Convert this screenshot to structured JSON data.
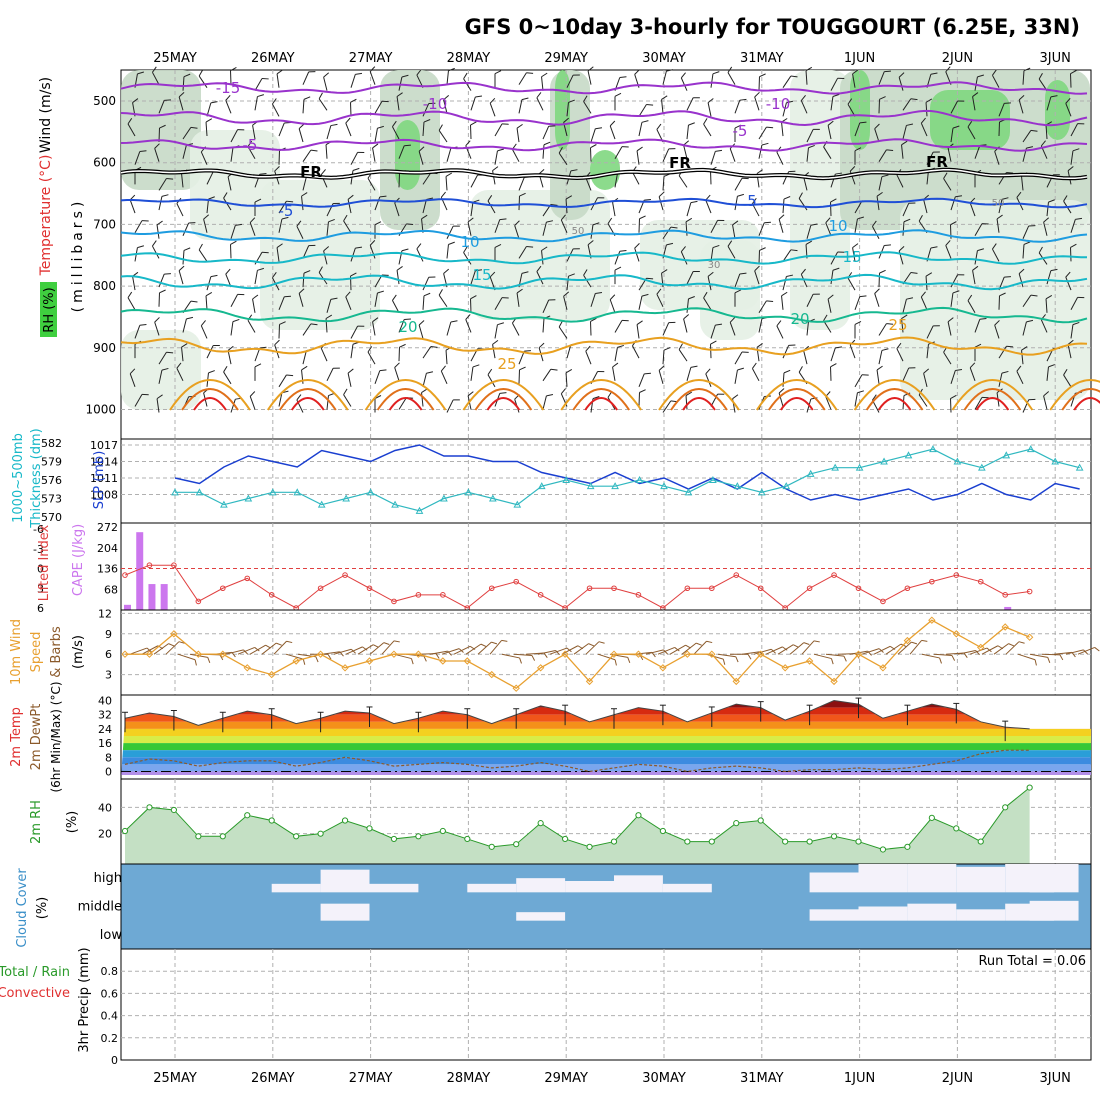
{
  "title": "GFS 0~10day 3-hourly for TOUGGOURT (6.25E, 33N)",
  "dates": [
    "25MAY",
    "26MAY",
    "27MAY",
    "28MAY",
    "29MAY",
    "30MAY",
    "31MAY",
    "1JUN",
    "2JUN",
    "3JUN"
  ],
  "colors": {
    "purple": "#9933cc",
    "black": "#000000",
    "blue": "#1f4fd6",
    "lightblue": "#1e9ce0",
    "cyan": "#17b8c8",
    "teal": "#16b890",
    "orange": "#e8a020",
    "darkorange": "#e0701a",
    "red": "#e02020",
    "green_light": "#e4efe4",
    "green_mid": "#c6d9c6",
    "green_dark": "#7fd77f",
    "slp": "#1a3fd0",
    "thickness": "#30b8c0",
    "cape": "#cc77ee",
    "li": "#e04040",
    "wind": "#e8a030",
    "barb": "#8b5a2b",
    "rh": "#2a9a2a",
    "cloud": "#6ea9d4",
    "cloud_clear": "#f4f2fa"
  },
  "panels": {
    "upper": {
      "ylabel_wind": "Wind (m/s)",
      "ylabel_temp": "Temperature (°C)",
      "ylabel_rh": "RH (%)",
      "ylabel_units": "(millibars)",
      "yticks": [
        "500",
        "600",
        "700",
        "800",
        "900",
        "1000"
      ],
      "contour_labels": [
        "-15",
        "-10",
        "-5",
        "-10",
        "-5",
        "FR",
        "FR",
        "FR",
        "-5",
        "5",
        "10",
        "10",
        "15",
        "15",
        "20",
        "20",
        "25",
        "25",
        "50",
        "30",
        "50"
      ]
    },
    "slp": {
      "ylabel_left": "1000~500mb",
      "ylabel_left2": "Thickness (dm)",
      "ylabel_right": "SLP (mb)",
      "yticks_left": [
        "582",
        "579",
        "576",
        "573",
        "570"
      ],
      "yticks_right": [
        "1017",
        "1014",
        "1011",
        "1008"
      ]
    },
    "cape": {
      "ylabel_left": "Lifted Index",
      "ylabel_right": "CAPE (J/kg)",
      "yticks_left": [
        "-6",
        "-3",
        "0",
        "3",
        "6"
      ],
      "yticks_right": [
        "272",
        "204",
        "136",
        "68"
      ]
    },
    "wind": {
      "ylabel1": "10m Wind",
      "ylabel2": "Speed",
      "ylabel3": "& Barbs",
      "ylabel_units": "(m/s)",
      "yticks": [
        "12",
        "9",
        "6",
        "3"
      ]
    },
    "temp": {
      "ylabel1": "2m Temp",
      "ylabel2": "2m DewPt",
      "ylabel3": "(6hr Min/Max) (°C)",
      "yticks": [
        "40",
        "32",
        "24",
        "16",
        "8",
        "0"
      ]
    },
    "rh": {
      "ylabel1": "2m RH",
      "ylabel_units": "(%)",
      "yticks": [
        "40",
        "20"
      ]
    },
    "cloud": {
      "ylabel1": "Cloud Cover",
      "ylabel_units": "(%)",
      "levels": [
        "high",
        "middle",
        "low"
      ]
    },
    "precip": {
      "ylabel_total": "Total / Rain",
      "ylabel_conv": "Convective",
      "ylabel_units": "3hr Precip (mm)",
      "yticks": [
        "0.8",
        "0.6",
        "0.4",
        "0.2",
        "0"
      ],
      "run_total": "Run Total = 0.06"
    }
  },
  "chart_data": [
    {
      "type": "line",
      "title": "Sea-level pressure and 1000-500mb thickness",
      "x_unit": "days from 25MAY 00Z",
      "series": [
        {
          "name": "SLP (mb)",
          "axis": "right",
          "ylim": [
            1005,
            1017
          ],
          "x": [
            0,
            0.25,
            0.5,
            0.75,
            1,
            1.25,
            1.5,
            1.75,
            2,
            2.25,
            2.5,
            2.75,
            3,
            3.25,
            3.5,
            3.75,
            4,
            4.25,
            4.5,
            4.75,
            5,
            5.25,
            5.5,
            5.75,
            6,
            6.25,
            6.5,
            6.75,
            7,
            7.25,
            7.5,
            7.75,
            8,
            8.25,
            8.5,
            8.75,
            9,
            9.25
          ],
          "values": [
            1011,
            1010,
            1013,
            1015,
            1014,
            1013,
            1016,
            1015,
            1014,
            1016,
            1017,
            1015,
            1015,
            1014,
            1014,
            1012,
            1011,
            1010,
            1012,
            1010,
            1011,
            1009,
            1011,
            1009,
            1012,
            1009,
            1007,
            1008,
            1007,
            1008,
            1009,
            1007,
            1008,
            1010,
            1008,
            1007,
            1010,
            1009
          ]
        },
        {
          "name": "Thickness (dm)",
          "axis": "left",
          "ylim": [
            570,
            582
          ],
          "x": [
            0,
            0.25,
            0.5,
            0.75,
            1,
            1.25,
            1.5,
            1.75,
            2,
            2.25,
            2.5,
            2.75,
            3,
            3.25,
            3.5,
            3.75,
            4,
            4.25,
            4.5,
            4.75,
            5,
            5.25,
            5.5,
            5.75,
            6,
            6.25,
            6.5,
            6.75,
            7,
            7.25,
            7.5,
            7.75,
            8,
            8.25,
            8.5,
            8.75,
            9,
            9.25
          ],
          "values": [
            574,
            574,
            572,
            573,
            574,
            574,
            572,
            573,
            574,
            572,
            571,
            573,
            574,
            573,
            572,
            575,
            576,
            575,
            575,
            576,
            575,
            574,
            576,
            575,
            574,
            575,
            577,
            578,
            578,
            579,
            580,
            581,
            579,
            578,
            580,
            581,
            579,
            578
          ]
        }
      ]
    },
    {
      "type": "bar",
      "title": "CAPE (J/kg)",
      "ylim": [
        0,
        272
      ],
      "x": [
        0,
        0.125,
        0.25,
        0.375,
        9.0
      ],
      "values": [
        17,
        255,
        85,
        85,
        10
      ]
    },
    {
      "type": "line",
      "title": "Lifted Index",
      "ylim": [
        6,
        -6
      ],
      "x": [
        0,
        0.25,
        0.5,
        0.75,
        1,
        1.25,
        1.5,
        1.75,
        2,
        2.25,
        2.5,
        2.75,
        3,
        3.25,
        3.5,
        3.75,
        4,
        4.25,
        4.5,
        4.75,
        5,
        5.25,
        5.5,
        5.75,
        6,
        6.25,
        6.5,
        6.75,
        7,
        7.25,
        7.5,
        7.75,
        8,
        8.25,
        8.5,
        8.75,
        9,
        9.25
      ],
      "values": [
        1,
        -0.5,
        -0.5,
        5,
        3,
        1.5,
        4,
        6,
        3,
        1,
        3,
        5,
        4,
        4,
        6,
        3,
        2,
        4,
        6,
        3,
        3,
        4,
        6,
        3,
        3,
        1,
        3,
        6,
        3,
        1,
        3,
        5,
        3,
        2,
        1,
        2,
        4,
        3.5
      ]
    },
    {
      "type": "line",
      "title": "10m Wind Speed (m/s)",
      "ylim": [
        0,
        12
      ],
      "x": [
        0,
        0.25,
        0.5,
        0.75,
        1,
        1.25,
        1.5,
        1.75,
        2,
        2.25,
        2.5,
        2.75,
        3,
        3.25,
        3.5,
        3.75,
        4,
        4.25,
        4.5,
        4.75,
        5,
        5.25,
        5.5,
        5.75,
        6,
        6.25,
        6.5,
        6.75,
        7,
        7.25,
        7.5,
        7.75,
        8,
        8.25,
        8.5,
        8.75,
        9,
        9.25
      ],
      "values": [
        6,
        6,
        9,
        6,
        6,
        4,
        3,
        5,
        6,
        4,
        5,
        6,
        6,
        5,
        5,
        3,
        1,
        4,
        6,
        2,
        6,
        6,
        4,
        6,
        6,
        2,
        6,
        4,
        5,
        2,
        6,
        4,
        8,
        11,
        9,
        7,
        10,
        8.5
      ]
    },
    {
      "type": "area",
      "title": "2m Temp / DewPt (°C)",
      "ylim": [
        -2,
        42
      ],
      "x": [
        0,
        0.25,
        0.5,
        0.75,
        1,
        1.25,
        1.5,
        1.75,
        2,
        2.25,
        2.5,
        2.75,
        3,
        3.25,
        3.5,
        3.75,
        4,
        4.25,
        4.5,
        4.75,
        5,
        5.25,
        5.5,
        5.75,
        6,
        6.25,
        6.5,
        6.75,
        7,
        7.25,
        7.5,
        7.75,
        8,
        8.25,
        8.5,
        8.75,
        9,
        9.25
      ],
      "series": [
        {
          "name": "2m Temp",
          "values": [
            30,
            33,
            31,
            26,
            30,
            34,
            32,
            27,
            30,
            34,
            33,
            27,
            30,
            34,
            32,
            27,
            32,
            37,
            34,
            28,
            32,
            36,
            34,
            28,
            33,
            38,
            36,
            29,
            34,
            40,
            38,
            30,
            34,
            38,
            35,
            28,
            25,
            24
          ]
        },
        {
          "name": "2m DewPt",
          "values": [
            4,
            7,
            6,
            3,
            5,
            6,
            6,
            3,
            5,
            8,
            6,
            3,
            4,
            5,
            4,
            2,
            3,
            5,
            3,
            0,
            2,
            4,
            3,
            0,
            2,
            3,
            2,
            0,
            1,
            1,
            2,
            1,
            2,
            4,
            6,
            10,
            12,
            12
          ]
        }
      ]
    },
    {
      "type": "area",
      "title": "2m RH (%)",
      "ylim": [
        0,
        60
      ],
      "x": [
        0,
        0.25,
        0.5,
        0.75,
        1,
        1.25,
        1.5,
        1.75,
        2,
        2.25,
        2.5,
        2.75,
        3,
        3.25,
        3.5,
        3.75,
        4,
        4.25,
        4.5,
        4.75,
        5,
        5.25,
        5.5,
        5.75,
        6,
        6.25,
        6.5,
        6.75,
        7,
        7.25,
        7.5,
        7.75,
        8,
        8.25,
        8.5,
        8.75,
        9,
        9.25
      ],
      "values": [
        22,
        40,
        38,
        18,
        18,
        34,
        30,
        18,
        20,
        30,
        24,
        16,
        18,
        22,
        16,
        10,
        12,
        28,
        16,
        10,
        14,
        34,
        22,
        14,
        14,
        28,
        30,
        14,
        14,
        18,
        14,
        8,
        10,
        32,
        24,
        14,
        40,
        55
      ]
    },
    {
      "type": "heatmap",
      "title": "Cloud Cover (%)",
      "rows": [
        "high",
        "middle",
        "low"
      ],
      "x": [
        0,
        0.5,
        1,
        1.5,
        2,
        2.5,
        3,
        3.5,
        4,
        4.5,
        5,
        5.5,
        6,
        6.5,
        7,
        7.5,
        8,
        8.5,
        9,
        9.25
      ],
      "high": [
        0,
        0,
        0,
        30,
        80,
        30,
        0,
        30,
        50,
        40,
        60,
        30,
        0,
        0,
        70,
        100,
        100,
        90,
        100,
        100
      ],
      "middle": [
        0,
        0,
        0,
        0,
        60,
        0,
        0,
        0,
        30,
        0,
        0,
        0,
        0,
        0,
        40,
        50,
        60,
        40,
        60,
        70
      ],
      "low": [
        0,
        0,
        0,
        0,
        0,
        0,
        0,
        0,
        0,
        0,
        0,
        0,
        0,
        0,
        0,
        0,
        0,
        0,
        0,
        0
      ]
    },
    {
      "type": "bar",
      "title": "3hr Precip (mm)",
      "ylim": [
        0,
        1.0
      ],
      "values": [],
      "run_total_mm": 0.06
    }
  ]
}
